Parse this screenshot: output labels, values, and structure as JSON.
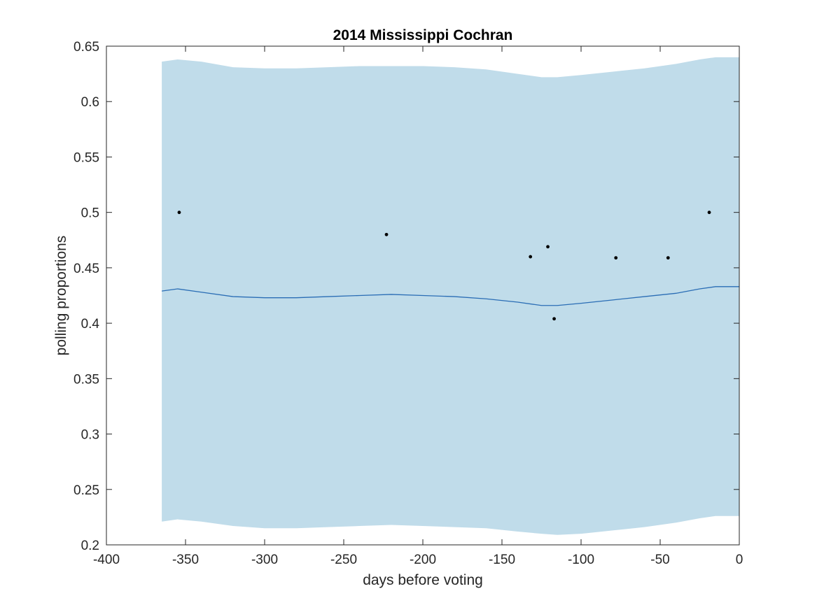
{
  "chart_data": {
    "type": "line",
    "title": "2014 Mississippi Cochran",
    "xlabel": "days before voting",
    "ylabel": "polling proportions",
    "xlim": [
      -400,
      0
    ],
    "ylim": [
      0.2,
      0.65
    ],
    "xticks": [
      -400,
      -350,
      -300,
      -250,
      -200,
      -150,
      -100,
      -50,
      0
    ],
    "xtick_labels": [
      "-400",
      "-350",
      "-300",
      "-250",
      "-200",
      "-150",
      "-100",
      "-50",
      "0"
    ],
    "yticks": [
      0.2,
      0.25,
      0.3,
      0.35,
      0.4,
      0.45,
      0.5,
      0.55,
      0.6,
      0.65
    ],
    "ytick_labels": [
      "0.2",
      "0.25",
      "0.3",
      "0.35",
      "0.4",
      "0.45",
      "0.5",
      "0.55",
      "0.6",
      "0.65"
    ],
    "grid": false,
    "colors": {
      "band": "#c0dcea",
      "line": "#2a6db5",
      "points": "#000000",
      "axes": "#262626"
    },
    "band": {
      "x": [
        -365,
        -355,
        -340,
        -320,
        -300,
        -280,
        -260,
        -240,
        -220,
        -200,
        -180,
        -160,
        -140,
        -125,
        -115,
        -100,
        -80,
        -60,
        -40,
        -25,
        -15,
        0
      ],
      "upper": [
        0.636,
        0.638,
        0.636,
        0.631,
        0.63,
        0.63,
        0.631,
        0.632,
        0.632,
        0.632,
        0.631,
        0.629,
        0.625,
        0.622,
        0.622,
        0.624,
        0.627,
        0.63,
        0.634,
        0.638,
        0.64,
        0.64
      ],
      "lower": [
        0.221,
        0.223,
        0.221,
        0.217,
        0.215,
        0.215,
        0.216,
        0.217,
        0.218,
        0.217,
        0.216,
        0.215,
        0.212,
        0.21,
        0.209,
        0.21,
        0.213,
        0.216,
        0.22,
        0.224,
        0.226,
        0.226
      ]
    },
    "series": [
      {
        "x": [
          -365,
          -355,
          -340,
          -320,
          -300,
          -280,
          -260,
          -240,
          -220,
          -200,
          -180,
          -160,
          -140,
          -125,
          -115,
          -100,
          -80,
          -60,
          -40,
          -25,
          -15,
          0
        ],
        "values": [
          0.429,
          0.431,
          0.428,
          0.424,
          0.423,
          0.423,
          0.424,
          0.425,
          0.426,
          0.425,
          0.424,
          0.422,
          0.419,
          0.416,
          0.416,
          0.418,
          0.421,
          0.424,
          0.427,
          0.431,
          0.433,
          0.433
        ]
      }
    ],
    "points": [
      {
        "x": -354,
        "y": 0.5
      },
      {
        "x": -223,
        "y": 0.48
      },
      {
        "x": -132,
        "y": 0.46
      },
      {
        "x": -121,
        "y": 0.469
      },
      {
        "x": -117,
        "y": 0.404
      },
      {
        "x": -78,
        "y": 0.459
      },
      {
        "x": -45,
        "y": 0.459
      },
      {
        "x": -19,
        "y": 0.5
      }
    ]
  }
}
